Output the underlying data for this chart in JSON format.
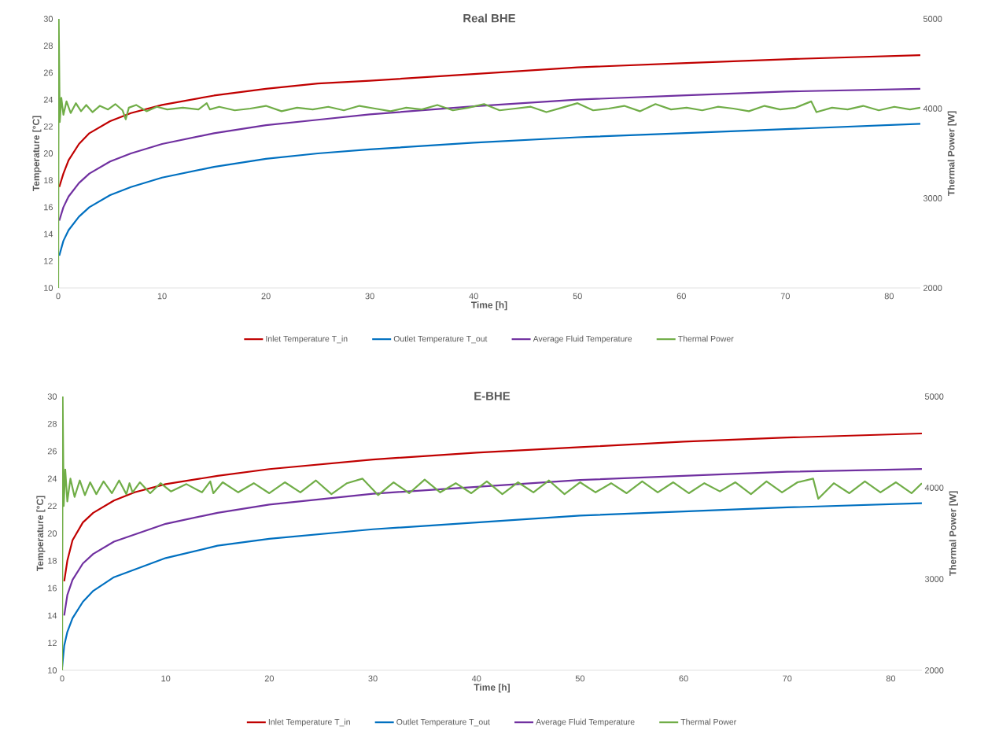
{
  "chart_data": [
    {
      "type": "line",
      "title": "Real BHE",
      "xlabel": "Time [h]",
      "ylabel": "Temperature [°C]",
      "y2label": "Thermal Power [W]",
      "xlim": [
        0,
        83
      ],
      "xticks": [
        0,
        10,
        20,
        30,
        40,
        50,
        60,
        70,
        80
      ],
      "ylim": [
        10,
        30
      ],
      "yticks": [
        10,
        12,
        14,
        16,
        18,
        20,
        22,
        24,
        26,
        28,
        30
      ],
      "y2lim": [
        2000,
        5000
      ],
      "y2ticks": [
        2000,
        3000,
        4000,
        5000
      ],
      "legend": "bottom",
      "marker": "none",
      "series": [
        {
          "name": "Inlet Temperature T_in",
          "color": "#c00000",
          "x": [
            0.1,
            0.5,
            1,
            2,
            3,
            5,
            7,
            10,
            15,
            20,
            25,
            30,
            40,
            50,
            60,
            70,
            83
          ],
          "values": [
            17.5,
            18.5,
            19.5,
            20.7,
            21.5,
            22.4,
            23.0,
            23.6,
            24.3,
            24.8,
            25.2,
            25.4,
            25.9,
            26.4,
            26.7,
            27.0,
            27.3
          ]
        },
        {
          "name": "Outlet Temperature T_out",
          "color": "#0070c0",
          "x": [
            0.1,
            0.5,
            1,
            2,
            3,
            5,
            7,
            10,
            15,
            20,
            25,
            30,
            40,
            50,
            60,
            70,
            83
          ],
          "values": [
            12.4,
            13.5,
            14.3,
            15.3,
            16.0,
            16.9,
            17.5,
            18.2,
            19.0,
            19.6,
            20.0,
            20.3,
            20.8,
            21.2,
            21.5,
            21.8,
            22.2
          ]
        },
        {
          "name": "Average Fluid Temperature",
          "color": "#7030a0",
          "x": [
            0.1,
            0.5,
            1,
            2,
            3,
            5,
            7,
            10,
            15,
            20,
            25,
            30,
            40,
            50,
            60,
            70,
            83
          ],
          "values": [
            15.0,
            16.0,
            16.8,
            17.8,
            18.5,
            19.4,
            20.0,
            20.7,
            21.5,
            22.1,
            22.5,
            22.9,
            23.5,
            24.0,
            24.3,
            24.6,
            24.8
          ]
        },
        {
          "name": "Thermal Power",
          "color": "#70ad47",
          "axis": "y2",
          "x": [
            0,
            0.05,
            0.15,
            0.3,
            0.5,
            0.8,
            1.2,
            1.7,
            2.2,
            2.7,
            3.3,
            4,
            4.8,
            5.5,
            6.2,
            6.5,
            6.8,
            7.5,
            8.5,
            9.5,
            10.5,
            12,
            13.5,
            14.3,
            14.6,
            15.5,
            17,
            18.5,
            20,
            21.5,
            23,
            24.5,
            26,
            27.5,
            29,
            30.5,
            32,
            33.5,
            35,
            36.5,
            38,
            39.5,
            41,
            42.5,
            44,
            45.5,
            47,
            48.5,
            50,
            51.5,
            53,
            54.5,
            56,
            57.5,
            59,
            60.5,
            62,
            63.5,
            65,
            66.5,
            68,
            69.5,
            71,
            72.5,
            73,
            74.5,
            76,
            77.5,
            79,
            80.5,
            82,
            83
          ],
          "values": [
            2000,
            5000,
            3850,
            4120,
            3930,
            4080,
            3950,
            4060,
            3970,
            4040,
            3960,
            4030,
            3990,
            4050,
            3980,
            3880,
            4010,
            4040,
            3970,
            4020,
            3990,
            4010,
            3990,
            4060,
            3990,
            4020,
            3980,
            4000,
            4030,
            3970,
            4010,
            3990,
            4020,
            3980,
            4030,
            4000,
            3970,
            4010,
            3990,
            4040,
            3980,
            4010,
            4050,
            3980,
            4000,
            4020,
            3960,
            4010,
            4060,
            3980,
            4000,
            4030,
            3970,
            4050,
            3990,
            4010,
            3980,
            4020,
            4000,
            3970,
            4030,
            3990,
            4010,
            4080,
            3960,
            4010,
            3990,
            4030,
            3980,
            4020,
            3990,
            4010
          ]
        }
      ]
    },
    {
      "type": "line",
      "title": "E-BHE",
      "xlabel": "Time [h]",
      "ylabel": "Temperature [°C]",
      "y2label": "Thermal Power [W]",
      "xlim": [
        0,
        83
      ],
      "xticks": [
        0,
        10,
        20,
        30,
        40,
        50,
        60,
        70,
        80
      ],
      "ylim": [
        10,
        30
      ],
      "yticks": [
        10,
        12,
        14,
        16,
        18,
        20,
        22,
        24,
        26,
        28,
        30
      ],
      "y2lim": [
        2000,
        5000
      ],
      "y2ticks": [
        2000,
        3000,
        4000,
        5000
      ],
      "legend": "bottom",
      "marker": "none",
      "series": [
        {
          "name": "Inlet Temperature T_in",
          "color": "#c00000",
          "x": [
            0.2,
            0.5,
            1,
            2,
            3,
            5,
            7,
            10,
            15,
            20,
            30,
            40,
            50,
            60,
            70,
            83
          ],
          "values": [
            16.5,
            18.0,
            19.5,
            20.8,
            21.5,
            22.4,
            23.0,
            23.6,
            24.2,
            24.7,
            25.4,
            25.9,
            26.3,
            26.7,
            27.0,
            27.3
          ]
        },
        {
          "name": "Outlet Temperature T_out",
          "color": "#0070c0",
          "x": [
            0,
            0.2,
            0.5,
            1,
            2,
            3,
            5,
            10,
            15,
            20,
            30,
            40,
            50,
            60,
            70,
            83
          ],
          "values": [
            10.2,
            11.8,
            12.8,
            13.8,
            15.0,
            15.8,
            16.8,
            18.2,
            19.1,
            19.6,
            20.3,
            20.8,
            21.3,
            21.6,
            21.9,
            22.2
          ]
        },
        {
          "name": "Average Fluid Temperature",
          "color": "#7030a0",
          "x": [
            0.2,
            0.5,
            1,
            2,
            3,
            5,
            10,
            15,
            20,
            30,
            40,
            50,
            60,
            70,
            83
          ],
          "values": [
            14.0,
            15.5,
            16.6,
            17.8,
            18.5,
            19.4,
            20.7,
            21.5,
            22.1,
            22.9,
            23.4,
            23.9,
            24.2,
            24.5,
            24.7
          ]
        },
        {
          "name": "Thermal Power",
          "color": "#70ad47",
          "axis": "y2",
          "x": [
            0,
            0.05,
            0.15,
            0.3,
            0.5,
            0.8,
            1.2,
            1.7,
            2.2,
            2.7,
            3.3,
            4,
            4.8,
            5.5,
            6.2,
            6.5,
            6.8,
            7.5,
            8.5,
            9.5,
            10.5,
            12,
            13.5,
            14.3,
            14.6,
            15.5,
            17,
            18.5,
            20,
            21.5,
            23,
            24.5,
            26,
            27.5,
            29,
            30.5,
            32,
            33.5,
            35,
            36.5,
            38,
            39.5,
            41,
            42.5,
            44,
            45.5,
            47,
            48.5,
            50,
            51.5,
            53,
            54.5,
            56,
            57.5,
            59,
            60.5,
            62,
            63.5,
            65,
            66.5,
            68,
            69.5,
            71,
            72.5,
            73,
            74.5,
            76,
            77.5,
            79,
            80.5,
            82,
            83
          ],
          "values": [
            2000,
            5000,
            3800,
            4200,
            3850,
            4100,
            3900,
            4080,
            3920,
            4060,
            3930,
            4070,
            3940,
            4080,
            3930,
            4050,
            3950,
            4060,
            3940,
            4050,
            3960,
            4040,
            3950,
            4070,
            3940,
            4060,
            3950,
            4050,
            3940,
            4060,
            3950,
            4080,
            3930,
            4050,
            4100,
            3920,
            4060,
            3940,
            4090,
            3950,
            4050,
            3940,
            4070,
            3930,
            4060,
            3950,
            4080,
            3930,
            4060,
            3950,
            4050,
            3940,
            4070,
            3950,
            4060,
            3940,
            4050,
            3960,
            4060,
            3930,
            4070,
            3950,
            4060,
            4100,
            3880,
            4050,
            3940,
            4070,
            3950,
            4060,
            3940,
            4050
          ]
        }
      ]
    }
  ]
}
